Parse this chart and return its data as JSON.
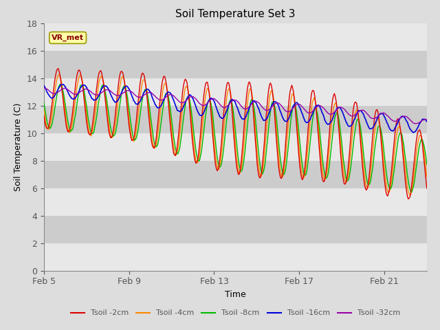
{
  "title": "Soil Temperature Set 3",
  "xlabel": "Time",
  "ylabel": "Soil Temperature (C)",
  "ylim": [
    0,
    18
  ],
  "yticks": [
    0,
    2,
    4,
    6,
    8,
    10,
    12,
    14,
    16,
    18
  ],
  "xtick_positions": [
    0,
    4,
    8,
    12,
    16
  ],
  "xtick_labels": [
    "Feb 5",
    "Feb 9",
    "Feb 13",
    "Feb 17",
    "Feb 21"
  ],
  "series_colors": [
    "#dd0000",
    "#ff8800",
    "#00bb00",
    "#0000dd",
    "#9900aa"
  ],
  "series_labels": [
    "Tsoil -2cm",
    "Tsoil -4cm",
    "Tsoil -8cm",
    "Tsoil -16cm",
    "Tsoil -32cm"
  ],
  "vr_met_label": "VR_met",
  "fig_bg_color": "#dddddd",
  "plot_bg_color": "#cccccc",
  "white_band_color": "#e8e8e8",
  "annotation_box_color": "#ffffaa",
  "annotation_text_color": "#880000",
  "annotation_edge_color": "#999900",
  "figsize": [
    6.4,
    4.8
  ],
  "dpi": 100
}
